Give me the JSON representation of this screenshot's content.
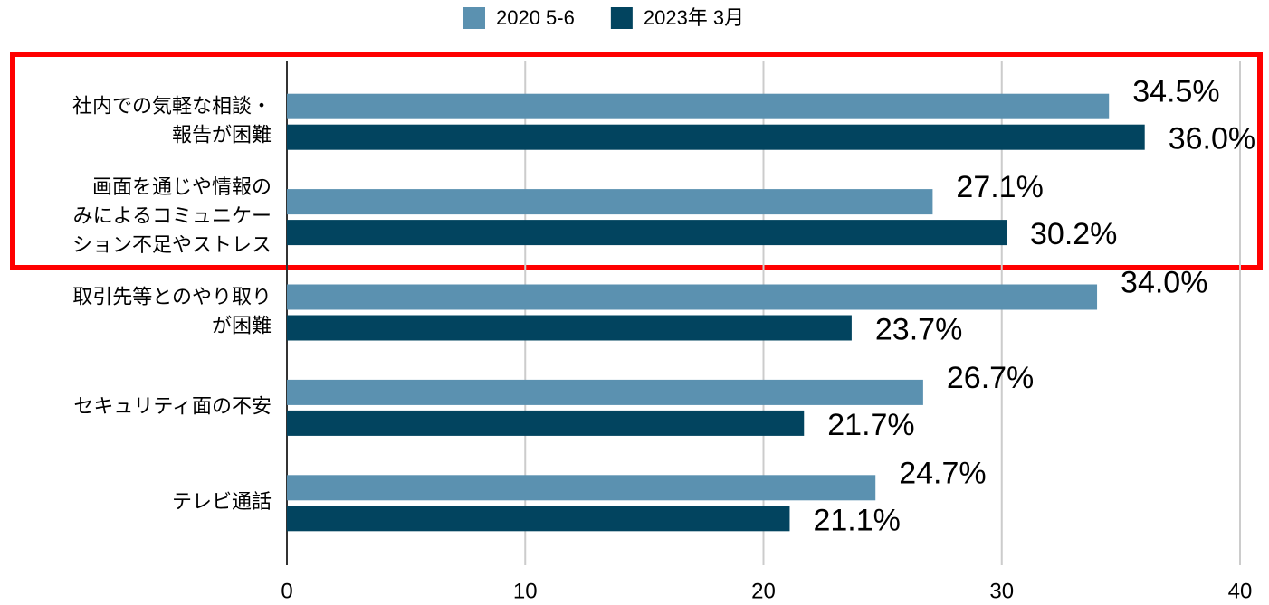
{
  "chart_data": {
    "type": "barh",
    "categories": [
      [
        "社内での気軽な相談・",
        "報告が困難"
      ],
      [
        "画面を通じや情報の",
        "みによるコミュニケー",
        "ション不足やストレス"
      ],
      [
        "取引先等とのやり取り",
        "が困難"
      ],
      [
        "セキュリティ面の不安"
      ],
      [
        "テレビ通話"
      ]
    ],
    "series": [
      {
        "name": "2020 5-6",
        "color": "#5b91b0",
        "values": [
          34.5,
          27.1,
          34.0,
          26.7,
          24.7
        ],
        "value_labels": [
          "34.5%",
          "27.1%",
          "34.0%",
          "26.7%",
          "24.7%"
        ]
      },
      {
        "name": "2023年 3月",
        "color": "#02445f",
        "values": [
          36.0,
          30.2,
          23.7,
          21.7,
          21.1
        ],
        "value_labels": [
          "36.0%",
          "30.2%",
          "23.7%",
          "21.7%",
          "21.1%"
        ]
      }
    ],
    "xlim": [
      0,
      40
    ],
    "xticks": [
      0,
      10,
      20,
      30,
      40
    ],
    "grid": true,
    "legend": "top"
  }
}
